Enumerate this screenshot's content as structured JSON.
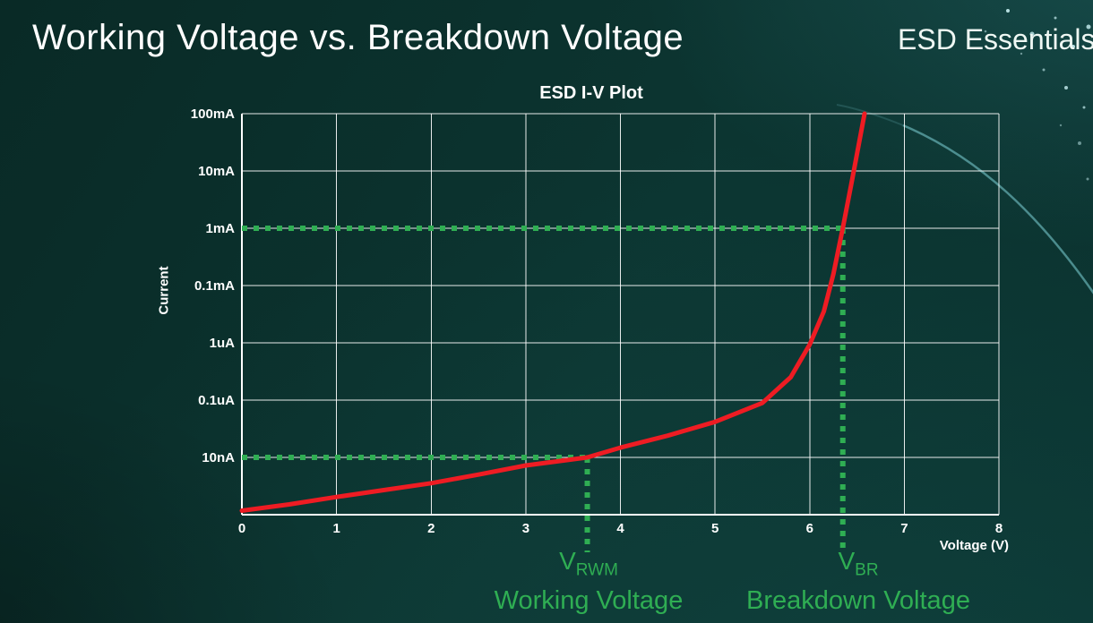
{
  "slide": {
    "title": "Working Voltage vs. Breakdown Voltage",
    "brand": "ESD Essentials"
  },
  "colors": {
    "curve": "#ee1c23",
    "guide": "#2fae53",
    "grid": "#ffffff",
    "text": "#ffffff",
    "background": "#0c3531"
  },
  "chart_data": {
    "type": "line",
    "title": "ESD I-V Plot",
    "xlabel": "Voltage (V)",
    "ylabel": "Current",
    "x_ticks": [
      "0",
      "1",
      "2",
      "3",
      "4",
      "5",
      "6",
      "7",
      "8"
    ],
    "xlim": [
      0,
      8
    ],
    "y_ticks": [
      "100mA",
      "10mA",
      "1mA",
      "0.1mA",
      "1uA",
      "0.1uA",
      "10nA"
    ],
    "y_scale": "log",
    "grid": true,
    "series": [
      {
        "name": "esd-diode-iv-curve",
        "color": "#ee1c23",
        "points": [
          [
            0,
            0.07
          ],
          [
            0.5,
            0.18
          ],
          [
            1,
            0.31
          ],
          [
            1.5,
            0.43
          ],
          [
            2,
            0.55
          ],
          [
            2.5,
            0.7
          ],
          [
            3,
            0.86
          ],
          [
            3.65,
            1.0
          ],
          [
            4,
            1.17
          ],
          [
            4.5,
            1.38
          ],
          [
            5,
            1.62
          ],
          [
            5.5,
            1.95
          ],
          [
            5.8,
            2.4
          ],
          [
            6.0,
            2.97
          ],
          [
            6.15,
            3.55
          ],
          [
            6.25,
            4.2
          ],
          [
            6.35,
            5.0
          ],
          [
            6.45,
            5.86
          ],
          [
            6.5,
            6.3
          ],
          [
            6.58,
            7.0
          ]
        ],
        "points_note": "x in volts, y in log-decade rows above bottom axis (row1=10nA, row5=1mA, row7=100mA)"
      }
    ],
    "annotations": [
      {
        "name": "vrwm",
        "x": 3.65,
        "row": 1,
        "current_level": "10nA",
        "symbol": "V",
        "sub": "RWM",
        "label": "Working Voltage"
      },
      {
        "name": "vbr",
        "x": 6.35,
        "row": 5,
        "current_level": "1mA",
        "symbol": "V",
        "sub": "BR",
        "label": "Breakdown Voltage"
      }
    ]
  }
}
